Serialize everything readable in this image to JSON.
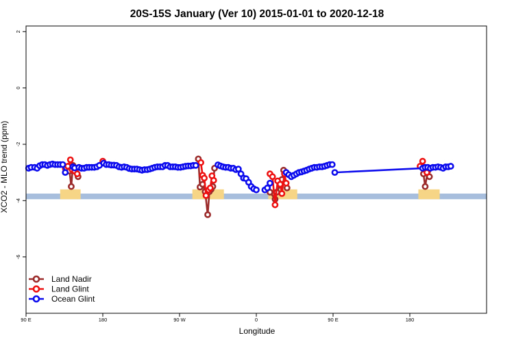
{
  "chart_data": {
    "type": "line",
    "title": "20S-15S January (Ver 10)   2015-01-01 to 2020-12-18",
    "xlabel": "Longitude",
    "ylabel": "XCO2 - MLO trend (ppm)",
    "xlim": [
      90,
      630
    ],
    "ylim": [
      -8,
      2.2
    ],
    "xticks": [
      {
        "value": 90,
        "label": "90 E"
      },
      {
        "value": 180,
        "label": "180"
      },
      {
        "value": 270,
        "label": "90 W"
      },
      {
        "value": 360,
        "label": "0"
      },
      {
        "value": 450,
        "label": "90 E"
      },
      {
        "value": 540,
        "label": "180"
      }
    ],
    "yticks": [
      {
        "value": 2,
        "label": "2"
      },
      {
        "value": 0,
        "label": "0"
      },
      {
        "value": -2,
        "label": "-2"
      },
      {
        "value": -4,
        "label": "-4"
      },
      {
        "value": -6,
        "label": "-6"
      }
    ],
    "grid": false,
    "legend_position": "bottom-left",
    "background_bands": [
      {
        "name": "ocean",
        "color": "#a7bedd",
        "x": [
          90,
          630
        ],
        "y": [
          -3.95,
          -3.75
        ]
      },
      {
        "name": "land",
        "color": "#f6d686",
        "x": [
          130,
          154
        ],
        "y": [
          -3.95,
          -3.6
        ]
      },
      {
        "name": "land",
        "color": "#f6d686",
        "x": [
          285,
          322
        ],
        "y": [
          -3.95,
          -3.6
        ]
      },
      {
        "name": "land",
        "color": "#f6d686",
        "x": [
          374,
          408
        ],
        "y": [
          -3.95,
          -3.6
        ]
      },
      {
        "name": "land",
        "color": "#f6d686",
        "x": [
          550,
          575
        ],
        "y": [
          -3.95,
          -3.6
        ]
      }
    ],
    "series": [
      {
        "name": "Land Nadir",
        "color": "#9b2b2b",
        "segments": [
          [
            [
              139,
              -2.85
            ],
            [
              141,
              -2.95
            ],
            [
              143,
              -3.5
            ],
            [
              145,
              -2.75
            ],
            [
              149,
              -2.85
            ],
            [
              151,
              -3.15
            ]
          ],
          [
            [
              292,
              -2.52
            ],
            [
              294,
              -3.52
            ],
            [
              297,
              -3.42
            ],
            [
              300,
              -3.68
            ],
            [
              303,
              -4.5
            ],
            [
              305,
              -3.68
            ],
            [
              307,
              -3.6
            ],
            [
              309,
              -3.5
            ],
            [
              311,
              -2.85
            ]
          ],
          [
            [
              376,
              -3.7
            ],
            [
              382,
              -3.95
            ],
            [
              384,
              -3.7
            ],
            [
              388,
              -3.45
            ],
            [
              390,
              -3.25
            ],
            [
              392,
              -2.92
            ],
            [
              396,
              -3.55
            ]
          ],
          [
            [
              556,
              -3.05
            ],
            [
              558,
              -3.5
            ],
            [
              561,
              -2.95
            ],
            [
              563,
              -3.15
            ]
          ]
        ]
      },
      {
        "name": "Land Glint",
        "color": "#ee1111",
        "segments": [
          [
            [
              136,
              -2.85
            ],
            [
              139,
              -2.78
            ],
            [
              142,
              -2.55
            ],
            [
              144,
              -2.9
            ],
            [
              147,
              -2.95
            ],
            [
              150,
              -3.05
            ]
          ],
          [
            [
              180,
              -2.6
            ]
          ],
          [
            [
              295,
              -2.65
            ],
            [
              297,
              -3.1
            ],
            [
              299,
              -3.2
            ],
            [
              301,
              -3.82
            ],
            [
              304,
              -3.62
            ],
            [
              306,
              -3.55
            ],
            [
              308,
              -3.12
            ],
            [
              310,
              -3.28
            ]
          ],
          [
            [
              376,
              -3.05
            ],
            [
              379,
              -3.15
            ],
            [
              382,
              -4.15
            ],
            [
              385,
              -3.3
            ],
            [
              388,
              -3.42
            ],
            [
              390,
              -3.75
            ],
            [
              393,
              -3.05
            ],
            [
              395,
              -3.38
            ]
          ],
          [
            [
              552,
              -2.78
            ],
            [
              555,
              -2.6
            ],
            [
              558,
              -2.9
            ],
            [
              560,
              -3.0
            ]
          ]
        ]
      },
      {
        "name": "Ocean Glint",
        "color": "#0b0bee",
        "segments": [
          [
            [
              93,
              -2.85
            ],
            [
              96,
              -2.82
            ],
            [
              100,
              -2.82
            ],
            [
              103,
              -2.85
            ],
            [
              106,
              -2.76
            ],
            [
              109,
              -2.72
            ],
            [
              112,
              -2.72
            ],
            [
              115,
              -2.75
            ],
            [
              118,
              -2.72
            ],
            [
              121,
              -2.7
            ],
            [
              124,
              -2.72
            ],
            [
              127,
              -2.72
            ],
            [
              130,
              -2.72
            ],
            [
              133,
              -2.72
            ],
            [
              136,
              -3.0
            ]
          ],
          [
            [
              145,
              -2.8
            ],
            [
              147,
              -2.84
            ],
            [
              152,
              -2.82
            ],
            [
              155,
              -2.85
            ],
            [
              158,
              -2.85
            ],
            [
              161,
              -2.82
            ],
            [
              164,
              -2.82
            ],
            [
              167,
              -2.82
            ],
            [
              170,
              -2.82
            ],
            [
              173,
              -2.8
            ],
            [
              176,
              -2.75
            ],
            [
              181,
              -2.67
            ],
            [
              184,
              -2.72
            ],
            [
              187,
              -2.72
            ],
            [
              190,
              -2.74
            ],
            [
              193,
              -2.74
            ],
            [
              196,
              -2.75
            ],
            [
              199,
              -2.8
            ],
            [
              202,
              -2.82
            ],
            [
              205,
              -2.8
            ],
            [
              208,
              -2.82
            ],
            [
              211,
              -2.86
            ],
            [
              214,
              -2.88
            ],
            [
              217,
              -2.88
            ],
            [
              220,
              -2.88
            ],
            [
              223,
              -2.9
            ],
            [
              226,
              -2.92
            ],
            [
              229,
              -2.9
            ],
            [
              232,
              -2.9
            ],
            [
              235,
              -2.88
            ],
            [
              238,
              -2.85
            ],
            [
              241,
              -2.82
            ],
            [
              244,
              -2.8
            ],
            [
              247,
              -2.8
            ],
            [
              250,
              -2.8
            ],
            [
              253,
              -2.75
            ],
            [
              256,
              -2.75
            ],
            [
              259,
              -2.8
            ],
            [
              262,
              -2.8
            ],
            [
              265,
              -2.8
            ],
            [
              268,
              -2.82
            ],
            [
              271,
              -2.82
            ],
            [
              274,
              -2.8
            ],
            [
              277,
              -2.78
            ],
            [
              280,
              -2.77
            ],
            [
              283,
              -2.77
            ],
            [
              286,
              -2.75
            ],
            [
              289,
              -2.75
            ]
          ],
          [
            [
              315,
              -2.73
            ],
            [
              318,
              -2.77
            ],
            [
              321,
              -2.8
            ],
            [
              324,
              -2.82
            ],
            [
              327,
              -2.82
            ],
            [
              330,
              -2.85
            ],
            [
              333,
              -2.85
            ],
            [
              336,
              -2.9
            ],
            [
              339,
              -2.88
            ],
            [
              342,
              -3.05
            ],
            [
              345,
              -3.2
            ],
            [
              348,
              -3.22
            ],
            [
              351,
              -3.35
            ],
            [
              354,
              -3.5
            ],
            [
              357,
              -3.58
            ],
            [
              360,
              -3.62
            ]
          ],
          [
            [
              370,
              -3.62
            ],
            [
              373,
              -3.55
            ],
            [
              376,
              -3.38
            ]
          ],
          [
            [
              395,
              -3.0
            ],
            [
              398,
              -3.08
            ],
            [
              401,
              -3.15
            ],
            [
              404,
              -3.1
            ],
            [
              407,
              -3.05
            ],
            [
              410,
              -3.0
            ],
            [
              413,
              -2.98
            ],
            [
              416,
              -2.95
            ],
            [
              419,
              -2.92
            ],
            [
              422,
              -2.88
            ],
            [
              425,
              -2.85
            ],
            [
              428,
              -2.82
            ],
            [
              431,
              -2.82
            ],
            [
              434,
              -2.8
            ],
            [
              437,
              -2.8
            ],
            [
              440,
              -2.78
            ],
            [
              443,
              -2.75
            ],
            [
              446,
              -2.72
            ],
            [
              449,
              -2.72
            ]
          ],
          [
            [
              452,
              -3.0
            ],
            [
              555,
              -2.85
            ],
            [
              558,
              -2.82
            ],
            [
              561,
              -2.82
            ],
            [
              564,
              -2.85
            ],
            [
              567,
              -2.82
            ],
            [
              570,
              -2.82
            ],
            [
              573,
              -2.8
            ],
            [
              576,
              -2.82
            ],
            [
              579,
              -2.85
            ],
            [
              582,
              -2.8
            ],
            [
              585,
              -2.8
            ],
            [
              588,
              -2.78
            ]
          ]
        ]
      }
    ]
  }
}
